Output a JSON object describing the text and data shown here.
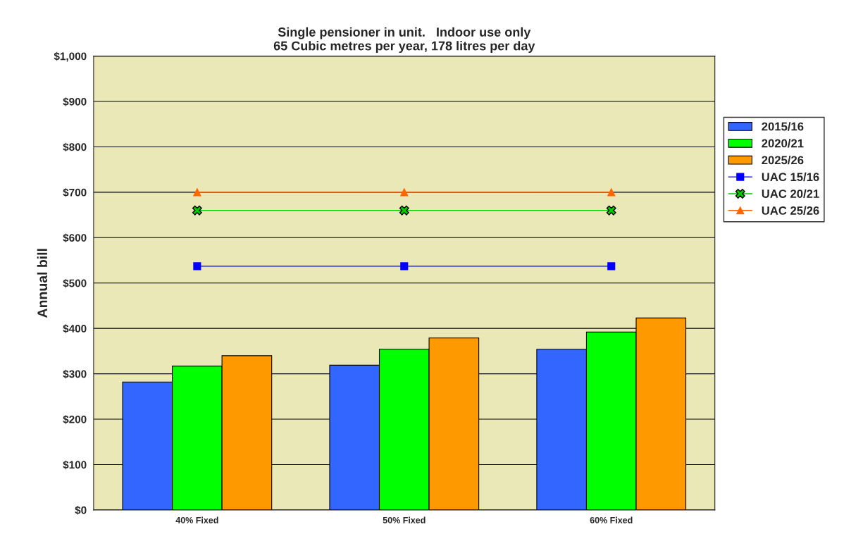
{
  "chart_data": {
    "type": "bar",
    "title": "Single pensioner in unit.   Indoor use only\n65 Cubic metres per year, 178 litres per day",
    "ylabel": "Annual bill",
    "categories": [
      "40% Fixed",
      "50% Fixed",
      "60% Fixed"
    ],
    "series": [
      {
        "name": "2015/16",
        "color": "#3366ff",
        "values": [
          282,
          319,
          354
        ]
      },
      {
        "name": "2020/21",
        "color": "#00ff00",
        "values": [
          317,
          354,
          392
        ]
      },
      {
        "name": "2025/26",
        "color": "#ff9900",
        "values": [
          340,
          379,
          423
        ]
      },
      {
        "name": "UAC 15/16",
        "type": "line",
        "color": "#0000ff",
        "marker": "square",
        "values": [
          537,
          537,
          537
        ]
      },
      {
        "name": "UAC 20/21",
        "type": "line",
        "color": "#00cc00",
        "marker": "cross",
        "values": [
          660,
          660,
          660
        ]
      },
      {
        "name": "UAC 25/26",
        "type": "line",
        "color": "#ff6600",
        "marker": "triangle",
        "values": [
          700,
          700,
          700
        ]
      }
    ],
    "ylim": [
      0,
      1000
    ],
    "yticks": [
      {
        "value": 0,
        "label": "$0"
      },
      {
        "value": 100,
        "label": "$100"
      },
      {
        "value": 200,
        "label": "$200"
      },
      {
        "value": 300,
        "label": "$300"
      },
      {
        "value": 400,
        "label": "$400"
      },
      {
        "value": 500,
        "label": "$500"
      },
      {
        "value": 600,
        "label": "$600"
      },
      {
        "value": 700,
        "label": "$700"
      },
      {
        "value": 800,
        "label": "$800"
      },
      {
        "value": 900,
        "label": "$900"
      },
      {
        "value": 1000,
        "label": "$1,000"
      }
    ],
    "grid": "y",
    "legend": "right"
  }
}
